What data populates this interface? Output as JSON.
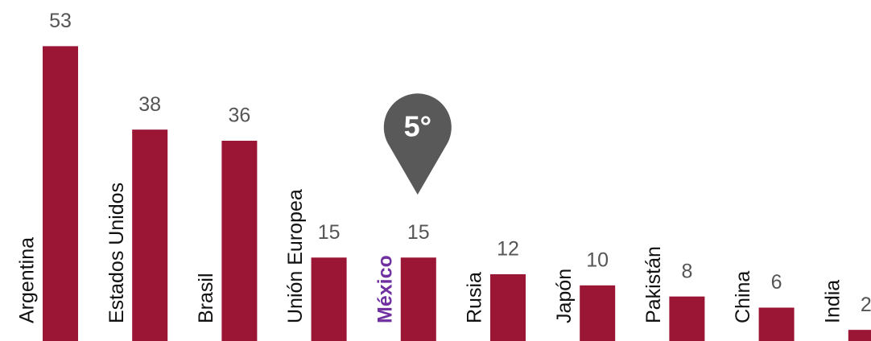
{
  "chart_data": {
    "type": "bar",
    "categories": [
      "Argentina",
      "Estados Unidos",
      "Brasil",
      "Unión Europea",
      "México",
      "Rusia",
      "Japón",
      "Pakistán",
      "China",
      "India"
    ],
    "values": [
      53,
      38,
      36,
      15,
      15,
      12,
      10,
      8,
      6,
      2
    ],
    "color": "#9b1535",
    "ylim": [
      0,
      61.3
    ],
    "highlight_color": "#7030a0",
    "annotation": {
      "text": "5°",
      "category": "México",
      "color": "#595959"
    }
  }
}
